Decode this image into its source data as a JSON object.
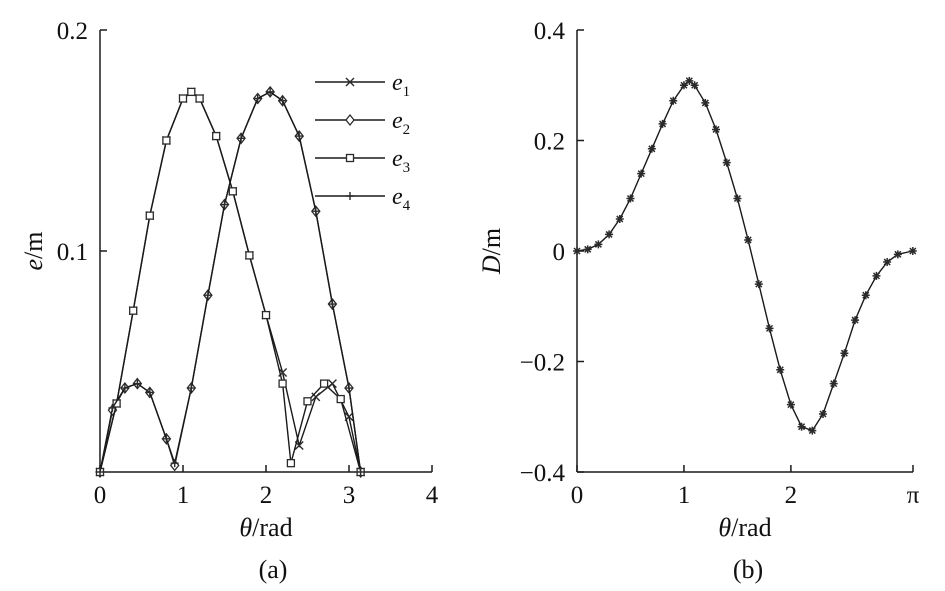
{
  "colors": {
    "ink": "#1a1a1a",
    "marker": "#2b2b2b"
  },
  "chart_data": [
    {
      "type": "line",
      "panel": "(a)",
      "xlabel_italic": "θ",
      "xlabel_rest": "/rad",
      "ylabel_italic": "e",
      "ylabel_rest": "/m",
      "xlim": [
        0,
        4
      ],
      "ylim": [
        0,
        0.2
      ],
      "xticks": [
        0,
        1,
        2,
        3,
        4
      ],
      "xtick_labels": [
        "0",
        "1",
        "2",
        "3",
        "4"
      ],
      "yticks": [
        0.1,
        0.2
      ],
      "ytick_labels": [
        "0.1",
        "0.2"
      ],
      "legend_position": "top-right",
      "series": [
        {
          "name_base": "e",
          "name_sub": "1",
          "marker": "x",
          "x": [
            0,
            0.2,
            0.4,
            0.6,
            0.8,
            1.0,
            1.1,
            1.2,
            1.4,
            1.6,
            1.8,
            2.0,
            2.2,
            2.4,
            2.6,
            2.8,
            3.0,
            3.14
          ],
          "y": [
            0,
            0.031,
            0.073,
            0.116,
            0.15,
            0.169,
            0.172,
            0.169,
            0.152,
            0.127,
            0.098,
            0.071,
            0.045,
            0.012,
            0.034,
            0.04,
            0.025,
            0
          ]
        },
        {
          "name_base": "e",
          "name_sub": "2",
          "marker": "diamond",
          "x": [
            0,
            0.15,
            0.3,
            0.45,
            0.6,
            0.8,
            0.9,
            1.1,
            1.3,
            1.5,
            1.7,
            1.9,
            2.05,
            2.2,
            2.4,
            2.6,
            2.8,
            3.0,
            3.14
          ],
          "y": [
            0,
            0.028,
            0.038,
            0.04,
            0.036,
            0.015,
            0.003,
            0.038,
            0.08,
            0.121,
            0.151,
            0.169,
            0.172,
            0.168,
            0.152,
            0.118,
            0.076,
            0.038,
            0
          ]
        },
        {
          "name_base": "e",
          "name_sub": "3",
          "marker": "square",
          "x": [
            0,
            0.2,
            0.4,
            0.6,
            0.8,
            1.0,
            1.1,
            1.2,
            1.4,
            1.6,
            1.8,
            2.0,
            2.2,
            2.3,
            2.5,
            2.7,
            2.9,
            3.14
          ],
          "y": [
            0,
            0.031,
            0.073,
            0.116,
            0.15,
            0.169,
            0.172,
            0.169,
            0.152,
            0.127,
            0.098,
            0.071,
            0.04,
            0.004,
            0.032,
            0.04,
            0.033,
            0
          ]
        },
        {
          "name_base": "e",
          "name_sub": "4",
          "marker": "plus",
          "x": [
            0,
            0.15,
            0.3,
            0.45,
            0.6,
            0.8,
            0.9,
            1.1,
            1.3,
            1.5,
            1.7,
            1.9,
            2.05,
            2.2,
            2.4,
            2.6,
            2.8,
            3.0,
            3.14
          ],
          "y": [
            0,
            0.029,
            0.038,
            0.04,
            0.036,
            0.015,
            0.004,
            0.038,
            0.08,
            0.121,
            0.151,
            0.169,
            0.172,
            0.168,
            0.152,
            0.118,
            0.076,
            0.038,
            0
          ]
        }
      ]
    },
    {
      "type": "line",
      "panel": "(b)",
      "xlabel_italic": "θ",
      "xlabel_rest": "/rad",
      "ylabel_italic": "D",
      "ylabel_rest": "/m",
      "xlim": [
        0,
        3.14159
      ],
      "ylim": [
        -0.4,
        0.4
      ],
      "xticks": [
        0,
        1,
        2,
        3.14159
      ],
      "xtick_labels": [
        "0",
        "1",
        "2",
        "π"
      ],
      "yticks": [
        -0.4,
        -0.2,
        0,
        0.2,
        0.4
      ],
      "ytick_labels": [
        "−0.4",
        "−0.2",
        "0",
        "0.2",
        "0.4"
      ],
      "series": [
        {
          "marker": "star",
          "x": [
            0,
            0.1,
            0.2,
            0.3,
            0.4,
            0.5,
            0.6,
            0.7,
            0.8,
            0.9,
            1.0,
            1.05,
            1.1,
            1.2,
            1.3,
            1.4,
            1.5,
            1.6,
            1.7,
            1.8,
            1.9,
            2.0,
            2.1,
            2.2,
            2.3,
            2.4,
            2.5,
            2.6,
            2.7,
            2.8,
            2.9,
            3.0,
            3.14
          ],
          "y": [
            0,
            0.003,
            0.012,
            0.03,
            0.058,
            0.095,
            0.14,
            0.185,
            0.23,
            0.272,
            0.3,
            0.308,
            0.3,
            0.268,
            0.22,
            0.16,
            0.095,
            0.02,
            -0.06,
            -0.14,
            -0.215,
            -0.278,
            -0.318,
            -0.325,
            -0.295,
            -0.24,
            -0.185,
            -0.125,
            -0.08,
            -0.045,
            -0.02,
            -0.006,
            0
          ]
        }
      ]
    }
  ]
}
